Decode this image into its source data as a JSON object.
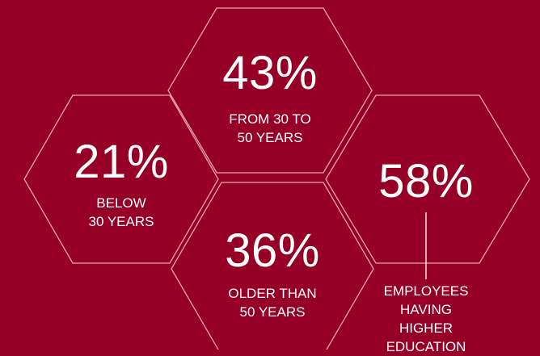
{
  "colors": {
    "background": "#960026",
    "hexagon_outline": "#e9a3ac",
    "text": "#ffffff"
  },
  "stats": [
    {
      "percent": "43%",
      "label_lines": [
        "FROM 30 TO",
        "50 YEARS"
      ]
    },
    {
      "percent": "21%",
      "label_lines": [
        "BELOW",
        "30 YEARS"
      ]
    },
    {
      "percent": "36%",
      "label_lines": [
        "OLDER THAN",
        "50 YEARS"
      ]
    },
    {
      "percent": "58%",
      "label_lines": [
        "EMPLOYEES",
        "HAVING HIGHER",
        "EDUCATION"
      ]
    }
  ]
}
